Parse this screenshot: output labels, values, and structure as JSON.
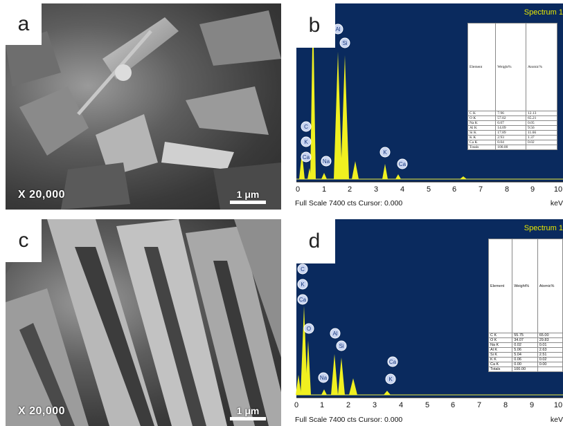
{
  "panels": {
    "a": {
      "letter": "a",
      "magnification": "X 20,000",
      "scale_label": "1 μm"
    },
    "b": {
      "letter": "b",
      "spectrum_title": "Spectrum 1",
      "footer": "Full Scale 7400 cts Cursor: 0.000",
      "unit": "keV",
      "x_ticks": [
        "0",
        "1",
        "2",
        "3",
        "4",
        "5",
        "6",
        "7",
        "8",
        "9",
        "10"
      ],
      "peak_labels": [
        "C",
        "K",
        "Ca",
        "Na",
        "Al",
        "Si",
        "K",
        "Ca"
      ],
      "table": {
        "header": [
          "Element",
          "Weight%",
          "Atomic%"
        ],
        "rows": [
          [
            "C K",
            "7.96",
            "12.13"
          ],
          [
            "O K",
            "57.02",
            "65.21"
          ],
          [
            "Na K",
            "0.07",
            "0.05"
          ],
          [
            "Al K",
            "14.09",
            "9.56"
          ],
          [
            "Si K",
            "17.89",
            "11.66"
          ],
          [
            "K K",
            "2.93",
            "1.37"
          ],
          [
            "Ca K",
            "0.04",
            "0.02"
          ],
          [
            "Totals",
            "100.00",
            ""
          ]
        ]
      }
    },
    "c": {
      "letter": "c",
      "magnification": "X 20,000",
      "scale_label": "1 μm"
    },
    "d": {
      "letter": "d",
      "spectrum_title": "Spectrum 1",
      "footer": "Full Scale 7400 cts Cursor: 0.000",
      "unit": "keV",
      "x_ticks": [
        "0",
        "1",
        "2",
        "3",
        "4",
        "5",
        "6",
        "7",
        "8",
        "9",
        "10"
      ],
      "peak_labels": [
        "C",
        "K",
        "Ca",
        "O",
        "Na",
        "Al",
        "Si",
        "Ca",
        "K"
      ],
      "table": {
        "header": [
          "Element",
          "Weight%",
          "Atomic%"
        ],
        "rows": [
          [
            "C K",
            "55.75",
            "65.00"
          ],
          [
            "O K",
            "34.07",
            "29.83"
          ],
          [
            "Na K",
            "0.02",
            "0.01"
          ],
          [
            "Al K",
            "5.06",
            "2.63"
          ],
          [
            "Si K",
            "5.04",
            "2.51"
          ],
          [
            "K K",
            "0.06",
            "0.02"
          ],
          [
            "Ca K",
            "0.00",
            "0.00"
          ],
          [
            "Totals",
            "100.00",
            ""
          ]
        ]
      }
    }
  }
}
